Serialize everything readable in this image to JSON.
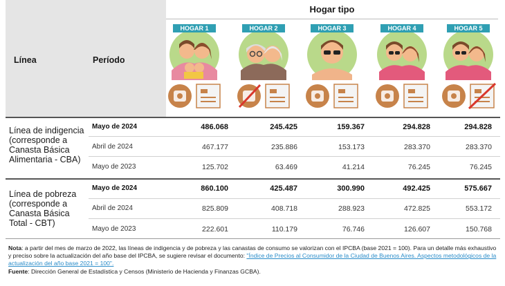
{
  "header": {
    "linea_label": "Línea",
    "periodo_label": "Período",
    "group_title": "Hogar tipo"
  },
  "hogares": [
    {
      "tag": "HOGAR 1"
    },
    {
      "tag": "HOGAR 2"
    },
    {
      "tag": "HOGAR 3"
    },
    {
      "tag": "HOGAR 4"
    },
    {
      "tag": "HOGAR 5"
    }
  ],
  "sections": [
    {
      "label": "Línea de indigencia (corresponde a Canasta Básica Alimentaria - CBA)",
      "rows": [
        {
          "periodo": "Mayo de 2024",
          "values": [
            "486.068",
            "245.425",
            "159.367",
            "294.828",
            "294.828"
          ]
        },
        {
          "periodo": "Abril de 2024",
          "values": [
            "467.177",
            "235.886",
            "153.173",
            "283.370",
            "283.370"
          ]
        },
        {
          "periodo": "Mayo de 2023",
          "values": [
            "125.702",
            "63.469",
            "41.214",
            "76.245",
            "76.245"
          ]
        }
      ]
    },
    {
      "label": "Línea de pobreza (corresponde a Canasta Básica Total - CBT)",
      "rows": [
        {
          "periodo": "Mayo de 2024",
          "values": [
            "860.100",
            "425.487",
            "300.990",
            "492.425",
            "575.667"
          ]
        },
        {
          "periodo": "Abril de 2024",
          "values": [
            "825.809",
            "408.718",
            "288.923",
            "472.825",
            "553.172"
          ]
        },
        {
          "periodo": "Mayo de 2023",
          "values": [
            "222.601",
            "110.179",
            "76.746",
            "126.607",
            "150.768"
          ]
        }
      ]
    }
  ],
  "notes": {
    "nota_label": "Nota",
    "nota_text": ": a partir del mes de marzo de 2022, las líneas de indigencia y de pobreza y las canastas de consumo se valorizan con el IPCBA (base 2021 = 100). Para un detalle más exhaustivo y preciso sobre la actualización del año base del IPCBA, se sugiere revisar el documento: ",
    "link_text": "\"Índice de Precios al Consumidor de la Ciudad de Buenos Aires. Aspectos metodológicos de la actualización del año base 2021 = 100\".",
    "fuente_label": "Fuente",
    "fuente_text": ": Dirección General de Estadística y Censos (Ministerio de Hacienda y Finanzas GCBA)."
  },
  "colors": {
    "tag_bg": "#2f9fb3",
    "circle_bg": "#b9d98a",
    "icon_bg": "#c7834a",
    "link": "#2a8cc9"
  }
}
